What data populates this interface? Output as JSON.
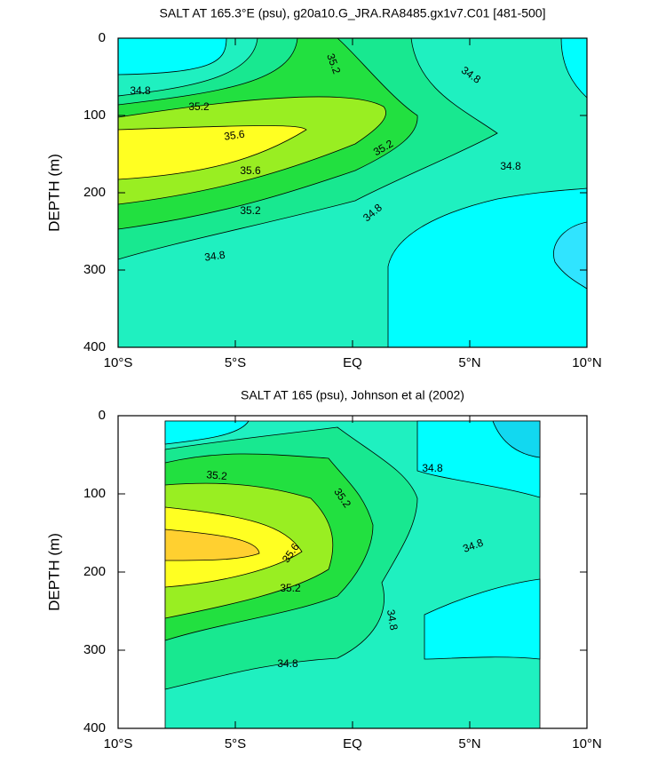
{
  "chart_data": [
    {
      "type": "contour",
      "title": "SALT AT 165.3°E (psu), g20a10.G_JRA.RA8485.gx1v7.C01 [481-500]",
      "y_label": "DEPTH (m)",
      "xlim": [
        -10,
        10
      ],
      "xticks": [
        {
          "value": -10,
          "label": "10°S"
        },
        {
          "value": -5,
          "label": "5°S"
        },
        {
          "value": 0,
          "label": "EQ"
        },
        {
          "value": 5,
          "label": "5°N"
        },
        {
          "value": 10,
          "label": "10°N"
        }
      ],
      "ylim": [
        400,
        0
      ],
      "yticks": [
        0,
        100,
        200,
        300,
        400
      ],
      "contour_labels": [
        35.2,
        34.8,
        34.8,
        35.2,
        35.6,
        35.2,
        35.6,
        34.8,
        35.2,
        34.8,
        34.8
      ]
    },
    {
      "type": "contour",
      "title": "SALT AT 165 (psu), Johnson et al (2002)",
      "y_label": "DEPTH (m)",
      "xlim": [
        -10,
        10
      ],
      "xticks": [
        {
          "value": -10,
          "label": "10°S"
        },
        {
          "value": -5,
          "label": "5°S"
        },
        {
          "value": 0,
          "label": "EQ"
        },
        {
          "value": 5,
          "label": "5°N"
        },
        {
          "value": 10,
          "label": "10°N"
        }
      ],
      "ylim": [
        400,
        0
      ],
      "yticks": [
        0,
        100,
        200,
        300,
        400
      ],
      "contour_labels": [
        35.2,
        35.2,
        34.8,
        35.6,
        34.8,
        35.2,
        34.8,
        34.8
      ]
    }
  ]
}
